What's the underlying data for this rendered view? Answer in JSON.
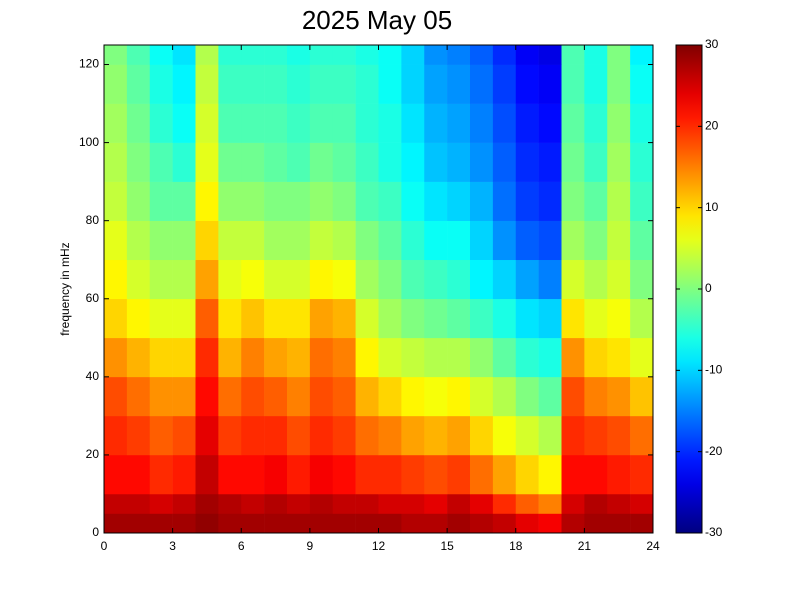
{
  "chart_data": {
    "type": "heatmap",
    "title": "2025 May 05",
    "ylabel": "frequency in mHz",
    "colormap": "jet",
    "x_edges": [
      0,
      1,
      2,
      3,
      4,
      5,
      6,
      7,
      8,
      9,
      10,
      11,
      12,
      13,
      14,
      15,
      16,
      17,
      18,
      19,
      20,
      21,
      22,
      23,
      24
    ],
    "y_edges": [
      0,
      5,
      10,
      20,
      30,
      40,
      50,
      60,
      70,
      80,
      90,
      100,
      110,
      120,
      125
    ],
    "values": [
      [
        28,
        28,
        28,
        28,
        29,
        28,
        28,
        28,
        28,
        28,
        28,
        28,
        28,
        27,
        27,
        28,
        27,
        26,
        24,
        23,
        27,
        28,
        28,
        28
      ],
      [
        26,
        26,
        25,
        26,
        28,
        27,
        26,
        27,
        26,
        27,
        26,
        26,
        25,
        25,
        24,
        26,
        24,
        20,
        17,
        15,
        25,
        27,
        26,
        25
      ],
      [
        22,
        22,
        20,
        21,
        26,
        22,
        22,
        23,
        21,
        23,
        22,
        20,
        20,
        19,
        18,
        19,
        16,
        13,
        10,
        8,
        22,
        22,
        21,
        20
      ],
      [
        20,
        19,
        17,
        18,
        24,
        19,
        20,
        20,
        18,
        20,
        19,
        16,
        15,
        13,
        12,
        13,
        10,
        7,
        5,
        3,
        20,
        19,
        18,
        16
      ],
      [
        18,
        16,
        14,
        14,
        22,
        16,
        18,
        17,
        15,
        18,
        17,
        12,
        10,
        8,
        7,
        8,
        5,
        3,
        0,
        -2,
        18,
        15,
        14,
        11
      ],
      [
        14,
        12,
        10,
        10,
        20,
        12,
        15,
        13,
        12,
        16,
        15,
        8,
        5,
        4,
        3,
        3,
        1,
        -2,
        -5,
        -6,
        14,
        10,
        9,
        6
      ],
      [
        10,
        8,
        6,
        6,
        17,
        9,
        11,
        9,
        9,
        13,
        12,
        5,
        2,
        0,
        -1,
        -2,
        -4,
        -6,
        -9,
        -10,
        9,
        6,
        7,
        3
      ],
      [
        8,
        5,
        3,
        3,
        13,
        6,
        7,
        5,
        5,
        8,
        7,
        2,
        0,
        -3,
        -4,
        -5,
        -8,
        -10,
        -13,
        -15,
        5,
        3,
        5,
        0
      ],
      [
        6,
        3,
        1,
        1,
        10,
        4,
        4,
        2,
        2,
        4,
        3,
        0,
        -2,
        -5,
        -7,
        -7,
        -10,
        -14,
        -17,
        -18,
        2,
        0,
        4,
        -2
      ],
      [
        4,
        1,
        -2,
        -2,
        8,
        1,
        1,
        0,
        0,
        1,
        0,
        -3,
        -4,
        -7,
        -9,
        -10,
        -12,
        -16,
        -19,
        -20,
        0,
        -2,
        3,
        -4
      ],
      [
        3,
        0,
        -3,
        -5,
        6,
        -1,
        -1,
        -2,
        -3,
        -1,
        -2,
        -4,
        -6,
        -8,
        -11,
        -12,
        -14,
        -17,
        -20,
        -21,
        -1,
        -4,
        2,
        -5
      ],
      [
        2,
        -1,
        -5,
        -7,
        5,
        -3,
        -3,
        -3,
        -4,
        -3,
        -3,
        -5,
        -6,
        -9,
        -12,
        -13,
        -15,
        -18,
        -21,
        -22,
        -2,
        -5,
        1,
        -6
      ],
      [
        1,
        -2,
        -6,
        -8,
        4,
        -4,
        -4,
        -4,
        -5,
        -4,
        -4,
        -5,
        -7,
        -10,
        -13,
        -14,
        -16,
        -19,
        -22,
        -23,
        -3,
        -6,
        0,
        -7
      ],
      [
        0,
        -3,
        -7,
        -9,
        3,
        -5,
        -5,
        -5,
        -6,
        -5,
        -5,
        -6,
        -7,
        -10,
        -14,
        -15,
        -17,
        -20,
        -23,
        -24,
        -3,
        -6,
        0,
        -8
      ]
    ],
    "xlim": [
      0,
      24
    ],
    "xticks": [
      0,
      3,
      6,
      9,
      12,
      15,
      18,
      21,
      24
    ],
    "ylim": [
      0,
      125
    ],
    "yticks": [
      0,
      20,
      40,
      60,
      80,
      100,
      120
    ],
    "clim": [
      -30,
      30
    ],
    "cticks": [
      -30,
      -20,
      -10,
      0,
      10,
      20,
      30
    ]
  }
}
